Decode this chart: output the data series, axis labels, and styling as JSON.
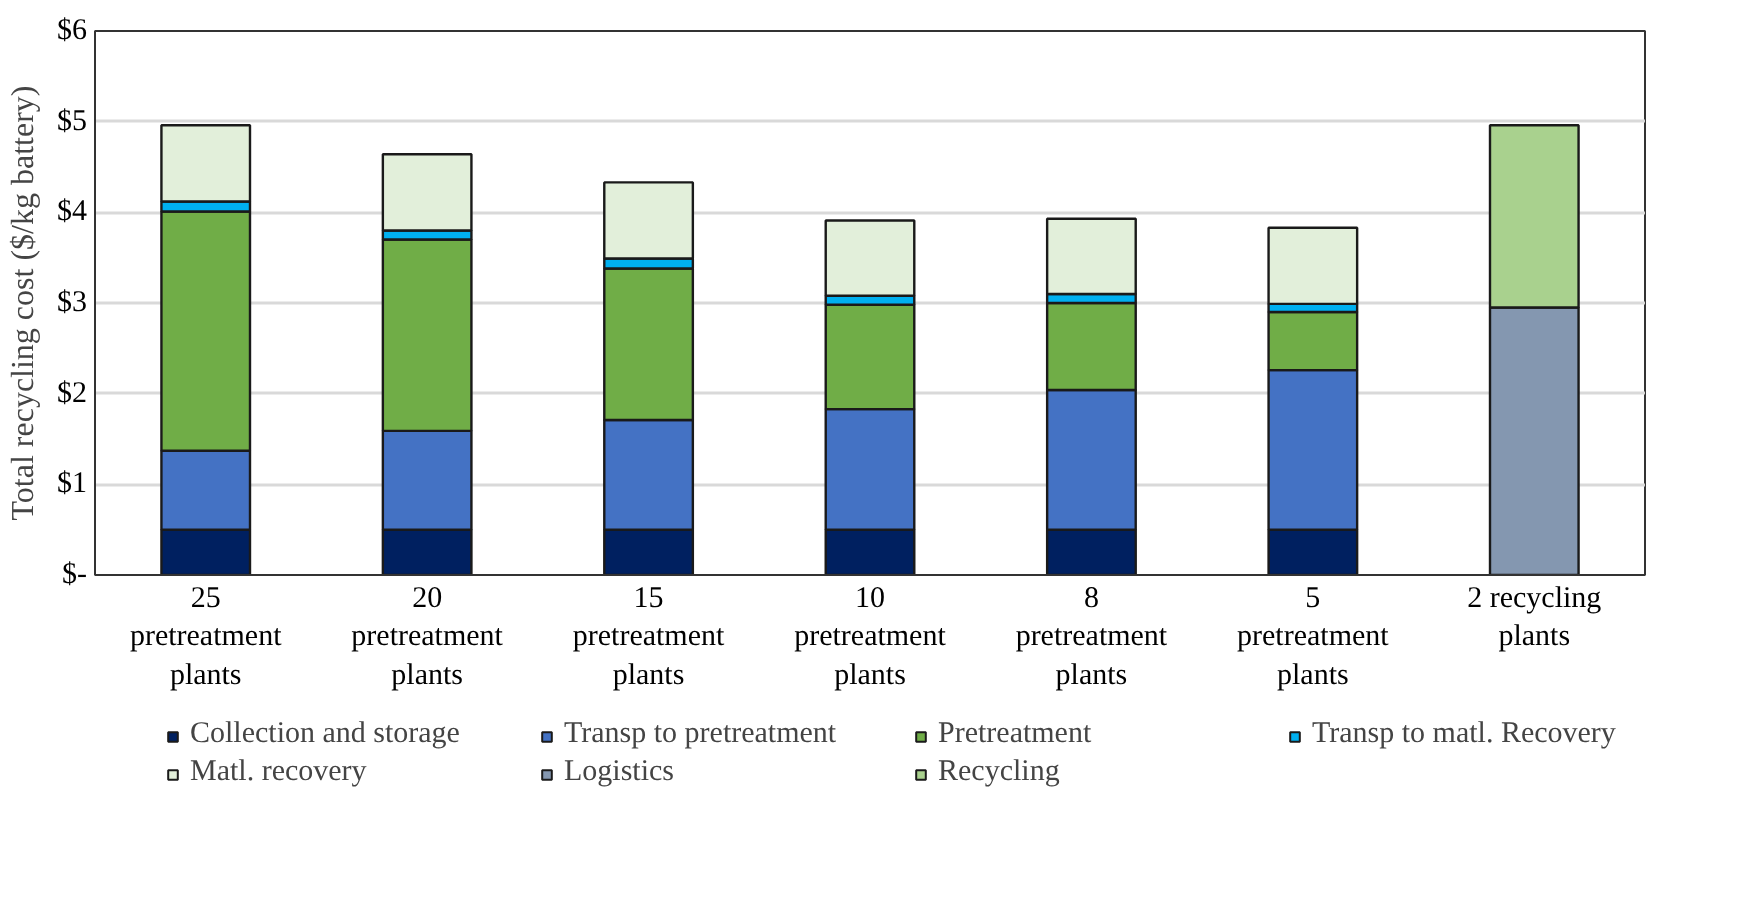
{
  "chart_data": {
    "type": "bar",
    "stacked": true,
    "ylabel": "Total recycling cost ($/kg battery)",
    "categories": [
      "25\npretreatment\nplants",
      "20\npretreatment\nplants",
      "15\npretreatment\nplants",
      "10\npretreatment\nplants",
      "8\npretreatment\nplants",
      "5\npretreatment\nplants",
      "2 recycling\nplants"
    ],
    "series": [
      {
        "name": "Collection and storage",
        "color": "#002060",
        "values": [
          0.5,
          0.5,
          0.5,
          0.5,
          0.5,
          0.5,
          null
        ]
      },
      {
        "name": "Transp to pretreatment",
        "color": "#4472c4",
        "values": [
          0.87,
          1.09,
          1.21,
          1.33,
          1.54,
          1.76,
          null
        ]
      },
      {
        "name": "Pretreatment",
        "color": "#70ad47",
        "values": [
          2.64,
          2.11,
          1.67,
          1.15,
          0.96,
          0.64,
          null
        ]
      },
      {
        "name": "Transp to matl. Recovery",
        "color": "#00b0f0",
        "values": [
          0.11,
          0.1,
          0.11,
          0.1,
          0.1,
          0.09,
          null
        ]
      },
      {
        "name": "Matl. recovery",
        "color": "#e2efda",
        "values": [
          0.84,
          0.84,
          0.84,
          0.83,
          0.83,
          0.84,
          null
        ]
      },
      {
        "name": "Logistics",
        "color": "#8497b0",
        "values": [
          null,
          null,
          null,
          null,
          null,
          null,
          2.95
        ]
      },
      {
        "name": "Recycling",
        "color": "#a9d18e",
        "values": [
          null,
          null,
          null,
          null,
          null,
          null,
          2.01
        ]
      }
    ],
    "ylim": [
      0,
      6
    ],
    "yticks": [
      {
        "value": 0,
        "label": "$-"
      },
      {
        "value": 1,
        "label": "$1"
      },
      {
        "value": 2,
        "label": "$2"
      },
      {
        "value": 3,
        "label": "$3"
      },
      {
        "value": 4,
        "label": "$4"
      },
      {
        "value": 5,
        "label": "$5"
      },
      {
        "value": 6,
        "label": "$6"
      }
    ],
    "grid": "y",
    "legend": "bottom"
  }
}
